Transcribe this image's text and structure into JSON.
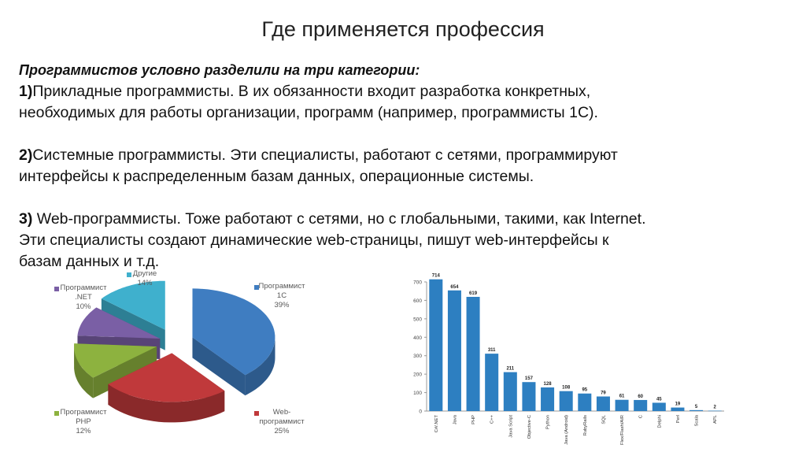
{
  "slide": {
    "title": "Где применяется профессия",
    "intro": "Программистов условно разделили на три категории:",
    "items": [
      {
        "num": "1)",
        "lines": [
          "Прикладные программисты. В их обязанности входит разработка конкретных,",
          "необходимых для работы организации, программ (например, программисты 1С)."
        ]
      },
      {
        "num": "2)",
        "lines": [
          "Системные программисты. Эти специалисты, работают с сетями, программируют",
          "интерфейсы к распределенным базам данных, операционные системы."
        ]
      },
      {
        "num": "3)",
        "lines": [
          " Web-программисты. Тоже работают с сетями, но с глобальными, такими, как Internet.",
          "Эти специалисты создают динамические web-страницы, пишут web-интерфейсы к",
          "базам данных и т.д."
        ]
      }
    ]
  },
  "chart_data": [
    {
      "type": "pie",
      "title": "",
      "slices": [
        {
          "label": [
            "Программист",
            "1С"
          ],
          "value": 39,
          "pct": "39%",
          "color": "#3f7dc1"
        },
        {
          "label": [
            "Web-",
            "программист"
          ],
          "value": 25,
          "pct": "25%",
          "color": "#c0393b"
        },
        {
          "label": [
            "Программист",
            "PHP"
          ],
          "value": 12,
          "pct": "12%",
          "color": "#8db23f"
        },
        {
          "label": [
            "Программист",
            ".NET"
          ],
          "value": 10,
          "pct": "10%",
          "color": "#7a5fa5"
        },
        {
          "label": [
            "Другие"
          ],
          "value": 14,
          "pct": "14%",
          "color": "#3fb0cd"
        }
      ]
    },
    {
      "type": "bar",
      "title": "",
      "categories": [
        "C#/.NET",
        "Java",
        "PHP",
        "C++",
        "Java Script",
        "Objective-C",
        "Python",
        "Java (Android)",
        "RubyRails",
        "SQL",
        "Flex/Flash/AIR",
        "C",
        "Delphi",
        "Perl",
        "Scala",
        "APL"
      ],
      "values": [
        714,
        654,
        619,
        311,
        211,
        157,
        128,
        108,
        95,
        79,
        61,
        60,
        45,
        19,
        5,
        2
      ],
      "ylim": [
        0,
        700
      ],
      "yticks": [
        0,
        100,
        200,
        300,
        400,
        500,
        600,
        700
      ],
      "color": "#2d7fc1",
      "grid": false
    }
  ]
}
